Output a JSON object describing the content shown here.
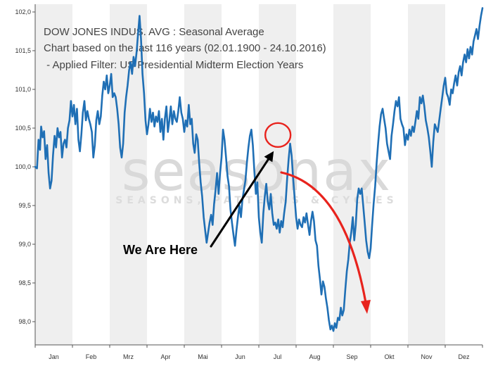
{
  "chart_data": {
    "type": "line",
    "title": "DOW JONES INDUS. AVG : Seasonal Average",
    "subtitle": "Chart based on the last 116 years (02.01.1900 - 24.10.2016)",
    "filter": " - Applied Filter: US Presidential Midterm Election Years",
    "xlabel": "",
    "ylabel": "",
    "ylim": [
      97.7,
      102.1
    ],
    "yticks": [
      "98,0",
      "98,5",
      "99,0",
      "99,5",
      "100,0",
      "100,5",
      "101,0",
      "101,5",
      "102,0"
    ],
    "ytick_values": [
      98.0,
      98.5,
      99.0,
      99.5,
      100.0,
      100.5,
      101.0,
      101.5,
      102.0
    ],
    "months": [
      "Jan",
      "Feb",
      "Mrz",
      "Apr",
      "Mai",
      "Jun",
      "Jul",
      "Aug",
      "Sep",
      "Okt",
      "Nov",
      "Dez"
    ],
    "grid": "alternating shaded month bands",
    "series": [
      {
        "color": "#1f6fb5",
        "x_unit": "month (0 = start of Jan, 12 = end of Dez)",
        "points": [
          [
            0.0,
            100.0
          ],
          [
            0.05,
            99.98
          ],
          [
            0.09,
            100.35
          ],
          [
            0.13,
            100.22
          ],
          [
            0.16,
            100.52
          ],
          [
            0.2,
            100.38
          ],
          [
            0.24,
            100.46
          ],
          [
            0.28,
            100.1
          ],
          [
            0.32,
            100.28
          ],
          [
            0.36,
            99.92
          ],
          [
            0.4,
            99.72
          ],
          [
            0.44,
            99.82
          ],
          [
            0.48,
            100.15
          ],
          [
            0.52,
            100.4
          ],
          [
            0.56,
            100.25
          ],
          [
            0.6,
            100.5
          ],
          [
            0.64,
            100.38
          ],
          [
            0.68,
            100.45
          ],
          [
            0.72,
            100.12
          ],
          [
            0.76,
            100.3
          ],
          [
            0.8,
            100.35
          ],
          [
            0.84,
            100.25
          ],
          [
            0.88,
            100.5
          ],
          [
            0.92,
            100.6
          ],
          [
            0.96,
            100.85
          ],
          [
            1.0,
            100.65
          ],
          [
            1.04,
            100.8
          ],
          [
            1.08,
            100.55
          ],
          [
            1.12,
            100.75
          ],
          [
            1.16,
            100.35
          ],
          [
            1.2,
            100.2
          ],
          [
            1.24,
            100.42
          ],
          [
            1.28,
            100.7
          ],
          [
            1.32,
            100.85
          ],
          [
            1.36,
            100.6
          ],
          [
            1.4,
            100.72
          ],
          [
            1.44,
            100.62
          ],
          [
            1.48,
            100.55
          ],
          [
            1.52,
            100.45
          ],
          [
            1.56,
            100.12
          ],
          [
            1.6,
            100.28
          ],
          [
            1.64,
            100.6
          ],
          [
            1.68,
            100.72
          ],
          [
            1.72,
            100.55
          ],
          [
            1.76,
            100.65
          ],
          [
            1.8,
            100.92
          ],
          [
            1.84,
            101.1
          ],
          [
            1.88,
            101.0
          ],
          [
            1.92,
            101.18
          ],
          [
            1.96,
            100.95
          ],
          [
            2.0,
            101.05
          ],
          [
            2.04,
            101.2
          ],
          [
            2.08,
            100.9
          ],
          [
            2.12,
            100.95
          ],
          [
            2.16,
            100.9
          ],
          [
            2.2,
            100.75
          ],
          [
            2.24,
            100.55
          ],
          [
            2.28,
            100.25
          ],
          [
            2.32,
            100.12
          ],
          [
            2.36,
            100.3
          ],
          [
            2.4,
            100.7
          ],
          [
            2.44,
            100.9
          ],
          [
            2.48,
            101.05
          ],
          [
            2.52,
            101.25
          ],
          [
            2.56,
            101.35
          ],
          [
            2.6,
            101.2
          ],
          [
            2.64,
            101.42
          ],
          [
            2.68,
            101.3
          ],
          [
            2.72,
            101.48
          ],
          [
            2.76,
            101.72
          ],
          [
            2.8,
            101.95
          ],
          [
            2.84,
            101.65
          ],
          [
            2.88,
            101.2
          ],
          [
            2.92,
            100.95
          ],
          [
            2.96,
            100.6
          ],
          [
            3.0,
            100.42
          ],
          [
            3.04,
            100.55
          ],
          [
            3.08,
            100.75
          ],
          [
            3.12,
            100.58
          ],
          [
            3.16,
            100.7
          ],
          [
            3.2,
            100.52
          ],
          [
            3.24,
            100.65
          ],
          [
            3.28,
            100.58
          ],
          [
            3.32,
            100.72
          ],
          [
            3.36,
            100.45
          ],
          [
            3.4,
            100.62
          ],
          [
            3.44,
            100.35
          ],
          [
            3.48,
            100.62
          ],
          [
            3.52,
            100.78
          ],
          [
            3.56,
            100.45
          ],
          [
            3.6,
            100.6
          ],
          [
            3.64,
            100.78
          ],
          [
            3.68,
            100.55
          ],
          [
            3.72,
            100.72
          ],
          [
            3.76,
            100.62
          ],
          [
            3.8,
            100.58
          ],
          [
            3.84,
            100.72
          ],
          [
            3.88,
            100.9
          ],
          [
            3.92,
            100.7
          ],
          [
            3.96,
            100.62
          ],
          [
            4.0,
            100.45
          ],
          [
            4.04,
            100.6
          ],
          [
            4.08,
            100.52
          ],
          [
            4.12,
            100.8
          ],
          [
            4.16,
            100.55
          ],
          [
            4.2,
            100.62
          ],
          [
            4.24,
            100.3
          ],
          [
            4.28,
            100.18
          ],
          [
            4.32,
            100.42
          ],
          [
            4.36,
            100.35
          ],
          [
            4.4,
            100.05
          ],
          [
            4.44,
            99.8
          ],
          [
            4.48,
            99.62
          ],
          [
            4.52,
            99.35
          ],
          [
            4.56,
            99.18
          ],
          [
            4.6,
            99.02
          ],
          [
            4.64,
            99.15
          ],
          [
            4.68,
            99.28
          ],
          [
            4.72,
            99.38
          ],
          [
            4.76,
            99.25
          ],
          [
            4.8,
            99.52
          ],
          [
            4.84,
            99.7
          ],
          [
            4.88,
            99.92
          ],
          [
            4.92,
            99.65
          ],
          [
            4.96,
            99.92
          ],
          [
            5.0,
            100.12
          ],
          [
            5.04,
            100.48
          ],
          [
            5.08,
            100.35
          ],
          [
            5.12,
            100.12
          ],
          [
            5.16,
            99.88
          ],
          [
            5.2,
            99.75
          ],
          [
            5.24,
            99.45
          ],
          [
            5.28,
            99.28
          ],
          [
            5.32,
            99.12
          ],
          [
            5.36,
            98.98
          ],
          [
            5.4,
            99.18
          ],
          [
            5.44,
            99.35
          ],
          [
            5.48,
            99.5
          ],
          [
            5.52,
            99.35
          ],
          [
            5.56,
            99.58
          ],
          [
            5.6,
            99.7
          ],
          [
            5.64,
            99.82
          ],
          [
            5.68,
            100.05
          ],
          [
            5.72,
            100.25
          ],
          [
            5.76,
            100.4
          ],
          [
            5.8,
            100.48
          ],
          [
            5.84,
            100.28
          ],
          [
            5.88,
            99.95
          ],
          [
            5.92,
            99.65
          ],
          [
            5.96,
            99.8
          ],
          [
            6.0,
            99.35
          ],
          [
            6.04,
            99.15
          ],
          [
            6.08,
            99.02
          ],
          [
            6.12,
            99.4
          ],
          [
            6.16,
            99.62
          ],
          [
            6.2,
            99.78
          ],
          [
            6.24,
            99.55
          ],
          [
            6.28,
            99.45
          ],
          [
            6.32,
            99.65
          ],
          [
            6.36,
            99.4
          ],
          [
            6.4,
            99.25
          ],
          [
            6.44,
            99.28
          ],
          [
            6.48,
            99.2
          ],
          [
            6.52,
            99.32
          ],
          [
            6.56,
            99.15
          ],
          [
            6.6,
            99.3
          ],
          [
            6.64,
            99.22
          ],
          [
            6.68,
            99.4
          ],
          [
            6.72,
            99.55
          ],
          [
            6.76,
            99.85
          ],
          [
            6.8,
            100.1
          ],
          [
            6.84,
            100.3
          ],
          [
            6.88,
            100.15
          ],
          [
            6.92,
            99.85
          ],
          [
            6.96,
            99.6
          ],
          [
            7.0,
            99.35
          ],
          [
            7.04,
            99.2
          ],
          [
            7.08,
            99.32
          ],
          [
            7.12,
            99.25
          ],
          [
            7.16,
            99.22
          ],
          [
            7.2,
            99.35
          ],
          [
            7.24,
            99.28
          ],
          [
            7.28,
            99.4
          ],
          [
            7.32,
            99.25
          ],
          [
            7.36,
            99.12
          ],
          [
            7.4,
            99.3
          ],
          [
            7.44,
            99.42
          ],
          [
            7.48,
            99.3
          ],
          [
            7.52,
            99.05
          ],
          [
            7.56,
            98.98
          ],
          [
            7.6,
            98.72
          ],
          [
            7.64,
            98.55
          ],
          [
            7.68,
            98.35
          ],
          [
            7.72,
            98.52
          ],
          [
            7.76,
            98.45
          ],
          [
            7.8,
            98.3
          ],
          [
            7.84,
            98.18
          ],
          [
            7.88,
            98.02
          ],
          [
            7.92,
            97.9
          ],
          [
            7.96,
            97.95
          ],
          [
            8.0,
            97.88
          ],
          [
            8.04,
            97.98
          ],
          [
            8.08,
            97.92
          ],
          [
            8.12,
            98.05
          ],
          [
            8.16,
            98.02
          ],
          [
            8.2,
            98.18
          ],
          [
            8.24,
            98.08
          ],
          [
            8.28,
            98.15
          ],
          [
            8.32,
            98.42
          ],
          [
            8.36,
            98.65
          ],
          [
            8.4,
            98.8
          ],
          [
            8.44,
            99.02
          ],
          [
            8.48,
            99.15
          ],
          [
            8.52,
            99.35
          ],
          [
            8.56,
            99.05
          ],
          [
            8.6,
            99.25
          ],
          [
            8.64,
            99.58
          ],
          [
            8.68,
            99.72
          ],
          [
            8.72,
            99.65
          ],
          [
            8.76,
            99.72
          ],
          [
            8.8,
            99.5
          ],
          [
            8.84,
            99.28
          ],
          [
            8.88,
            99.05
          ],
          [
            8.92,
            98.9
          ],
          [
            8.96,
            98.82
          ],
          [
            9.0,
            98.95
          ],
          [
            9.04,
            99.25
          ],
          [
            9.08,
            99.52
          ],
          [
            9.12,
            99.75
          ],
          [
            9.16,
            100.05
          ],
          [
            9.2,
            100.3
          ],
          [
            9.24,
            100.52
          ],
          [
            9.28,
            100.68
          ],
          [
            9.32,
            100.75
          ],
          [
            9.36,
            100.62
          ],
          [
            9.4,
            100.5
          ],
          [
            9.44,
            100.3
          ],
          [
            9.48,
            100.2
          ],
          [
            9.52,
            100.1
          ],
          [
            9.56,
            100.4
          ],
          [
            9.6,
            100.55
          ],
          [
            9.64,
            100.72
          ],
          [
            9.68,
            100.85
          ],
          [
            9.72,
            100.78
          ],
          [
            9.76,
            100.9
          ],
          [
            9.8,
            100.62
          ],
          [
            9.84,
            100.55
          ],
          [
            9.88,
            100.5
          ],
          [
            9.92,
            100.28
          ],
          [
            9.96,
            100.42
          ],
          [
            10.0,
            100.35
          ],
          [
            10.04,
            100.48
          ],
          [
            10.08,
            100.4
          ],
          [
            10.12,
            100.52
          ],
          [
            10.16,
            100.45
          ],
          [
            10.2,
            100.58
          ],
          [
            10.24,
            100.72
          ],
          [
            10.28,
            100.62
          ],
          [
            10.32,
            100.9
          ],
          [
            10.36,
            100.82
          ],
          [
            10.4,
            100.92
          ],
          [
            10.44,
            100.78
          ],
          [
            10.48,
            100.6
          ],
          [
            10.52,
            100.5
          ],
          [
            10.56,
            100.38
          ],
          [
            10.6,
            100.2
          ],
          [
            10.64,
            100.0
          ],
          [
            10.68,
            100.32
          ],
          [
            10.72,
            100.55
          ],
          [
            10.76,
            100.5
          ],
          [
            10.8,
            100.45
          ],
          [
            10.84,
            100.6
          ],
          [
            10.88,
            100.75
          ],
          [
            10.92,
            100.9
          ],
          [
            10.96,
            101.05
          ],
          [
            11.0,
            101.15
          ],
          [
            11.04,
            100.95
          ],
          [
            11.08,
            100.9
          ],
          [
            11.12,
            100.8
          ],
          [
            11.16,
            101.0
          ],
          [
            11.2,
            100.95
          ],
          [
            11.24,
            101.08
          ],
          [
            11.28,
            101.18
          ],
          [
            11.32,
            101.05
          ],
          [
            11.36,
            101.22
          ],
          [
            11.4,
            101.3
          ],
          [
            11.44,
            101.18
          ],
          [
            11.48,
            101.35
          ],
          [
            11.52,
            101.45
          ],
          [
            11.56,
            101.35
          ],
          [
            11.6,
            101.52
          ],
          [
            11.64,
            101.4
          ],
          [
            11.68,
            101.55
          ],
          [
            11.72,
            101.45
          ],
          [
            11.76,
            101.62
          ],
          [
            11.8,
            101.7
          ],
          [
            11.84,
            101.78
          ],
          [
            11.88,
            101.65
          ],
          [
            11.92,
            101.82
          ],
          [
            11.96,
            101.95
          ],
          [
            12.0,
            102.05
          ]
        ]
      }
    ],
    "annotations": {
      "label": "We Are Here",
      "marker_x": 6.55,
      "marker_y": 100.42,
      "arrow_color": "#000000",
      "forecast_arrow_color": "#e8231d",
      "circle_color": "#e8231d"
    }
  },
  "watermark": {
    "brand": "seasonax",
    "tagline": "SEASONS, PATTERNS & CYCLES"
  },
  "colors": {
    "line": "#1f6fb5",
    "band": "#efefef",
    "axis": "#555555"
  }
}
